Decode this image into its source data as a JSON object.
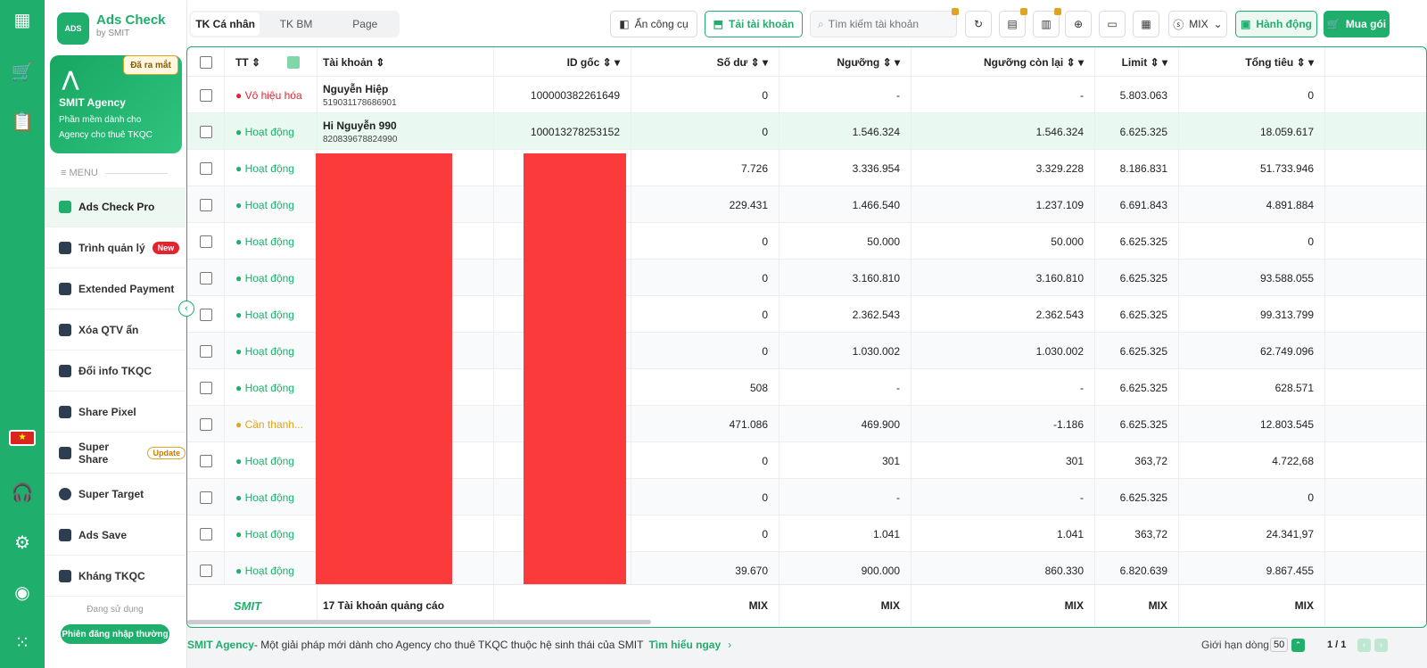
{
  "app": {
    "name": "Ads Check",
    "by": "by SMIT",
    "logo_text": "ADS"
  },
  "agency": {
    "name": "SMIT Agency",
    "desc1": "Phần mềm dành cho",
    "desc2": "Agency cho thuê TKQC",
    "badge": "Đã ra mắt"
  },
  "menu": {
    "title": "MENU",
    "items": [
      {
        "label": "Ads Check Pro"
      },
      {
        "label": "Trình quản lý",
        "badge": "New"
      },
      {
        "label": "Extended Payment"
      },
      {
        "label": "Xóa QTV ẩn"
      },
      {
        "label": "Đổi info TKQC"
      },
      {
        "label": "Share Pixel"
      },
      {
        "label": "Super Share",
        "badge": "Update"
      },
      {
        "label": "Super Target"
      },
      {
        "label": "Ads Save"
      },
      {
        "label": "Kháng TKQC"
      }
    ],
    "using_label": "Đang sử dụng",
    "session_button": "Phiên đăng nhập thường"
  },
  "tabs": [
    "TK Cá nhân",
    "TK BM",
    "Page"
  ],
  "toolbar": {
    "hide_tools": "Ẩn công cụ",
    "load_accounts": "Tải tài khoản",
    "search_placeholder": "Tìm kiếm tài khoản",
    "currency": "MIX",
    "action": "Hành động",
    "buy": "Mua gói"
  },
  "table": {
    "headers": [
      "TT",
      "Tài khoản",
      "ID gốc",
      "Số dư",
      "Ngưỡng",
      "Ngưỡng còn lại",
      "Limit",
      "Tổng tiêu"
    ],
    "rows": [
      {
        "status": "Vô hiệu hóa",
        "name": "Nguyễn Hiệp",
        "acc_id": "519031178686901",
        "id_goc": "100000382261649",
        "so_du": "0",
        "nguong": "-",
        "nguong_con_lai": "-",
        "limit": "5.803.063",
        "tong_tieu": "0"
      },
      {
        "status": "Hoạt động",
        "name": "Hi Nguyễn 990",
        "acc_id": "820839678824990",
        "id_goc": "100013278253152",
        "so_du": "0",
        "nguong": "1.546.324",
        "nguong_con_lai": "1.546.324",
        "limit": "6.625.325",
        "tong_tieu": "18.059.617"
      },
      {
        "status": "Hoạt động",
        "so_du": "7.726",
        "nguong": "3.336.954",
        "nguong_con_lai": "3.329.228",
        "limit": "8.186.831",
        "tong_tieu": "51.733.946"
      },
      {
        "status": "Hoạt động",
        "so_du": "229.431",
        "nguong": "1.466.540",
        "nguong_con_lai": "1.237.109",
        "limit": "6.691.843",
        "tong_tieu": "4.891.884"
      },
      {
        "status": "Hoạt động",
        "so_du": "0",
        "nguong": "50.000",
        "nguong_con_lai": "50.000",
        "limit": "6.625.325",
        "tong_tieu": "0"
      },
      {
        "status": "Hoạt động",
        "so_du": "0",
        "nguong": "3.160.810",
        "nguong_con_lai": "3.160.810",
        "limit": "6.625.325",
        "tong_tieu": "93.588.055"
      },
      {
        "status": "Hoạt động",
        "so_du": "0",
        "nguong": "2.362.543",
        "nguong_con_lai": "2.362.543",
        "limit": "6.625.325",
        "tong_tieu": "99.313.799"
      },
      {
        "status": "Hoạt động",
        "so_du": "0",
        "nguong": "1.030.002",
        "nguong_con_lai": "1.030.002",
        "limit": "6.625.325",
        "tong_tieu": "62.749.096"
      },
      {
        "status": "Hoạt động",
        "so_du": "508",
        "nguong": "-",
        "nguong_con_lai": "-",
        "limit": "6.625.325",
        "tong_tieu": "628.571"
      },
      {
        "status": "Cần thanh...",
        "so_du": "471.086",
        "nguong": "469.900",
        "nguong_con_lai": "-1.186",
        "limit": "6.625.325",
        "tong_tieu": "12.803.545"
      },
      {
        "status": "Hoạt động",
        "so_du": "0",
        "nguong": "301",
        "nguong_con_lai": "301",
        "limit": "363,72",
        "tong_tieu": "4.722,68"
      },
      {
        "status": "Hoạt động",
        "so_du": "0",
        "nguong": "-",
        "nguong_con_lai": "-",
        "limit": "6.625.325",
        "tong_tieu": "0"
      },
      {
        "status": "Hoạt động",
        "so_du": "0",
        "nguong": "1.041",
        "nguong_con_lai": "1.041",
        "limit": "363,72",
        "tong_tieu": "24.341,97"
      },
      {
        "status": "Hoạt động",
        "so_du": "39.670",
        "nguong": "900.000",
        "nguong_con_lai": "860.330",
        "limit": "6.820.639",
        "tong_tieu": "9.867.455"
      }
    ],
    "footer": {
      "logo": "SMIT",
      "count": "17 Tài khoản quảng cáo",
      "mix": "MIX"
    }
  },
  "bottom": {
    "brand": "SMIT Agency",
    "text": " - Một giải pháp mới dành cho Agency cho thuê TKQC thuộc hệ sinh thái của SMIT",
    "link": "Tìm hiểu ngay",
    "limit_label": "Giới hạn dòng",
    "limit_value": "50",
    "page": "1 / 1"
  },
  "colors": {
    "brand": "#1fae6c",
    "danger": "#e5232f",
    "warn": "#e0a322",
    "redact": "#fb3b3b"
  }
}
